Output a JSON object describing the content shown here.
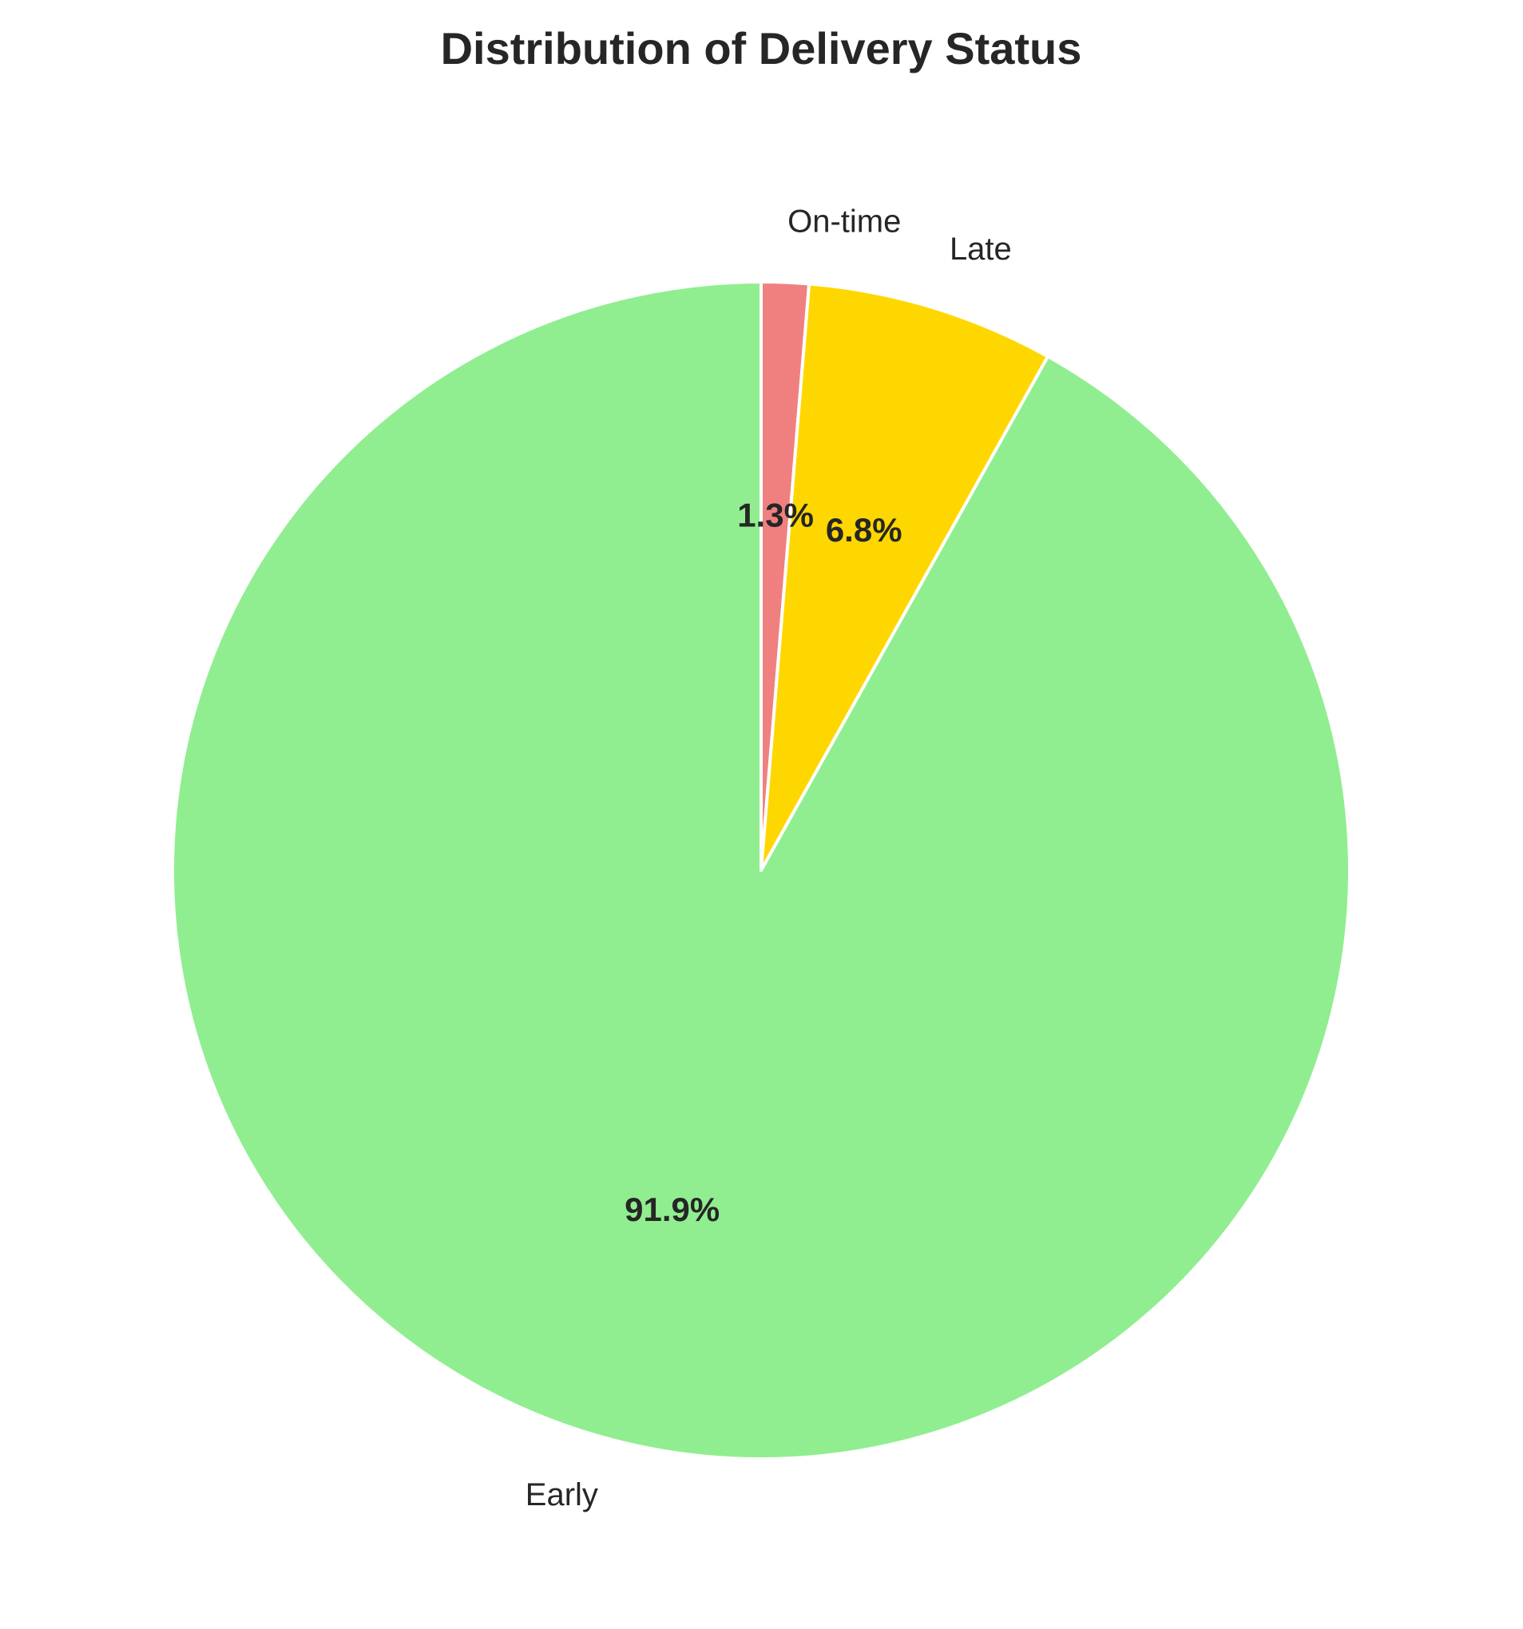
{
  "chart_data": {
    "type": "pie",
    "title": "Distribution of Delivery Status",
    "start_angle_deg": 90,
    "direction": "clockwise",
    "slices": [
      {
        "label": "On-time",
        "value": 1.3,
        "pct_label": "1.3%",
        "color": "#f08080"
      },
      {
        "label": "Late",
        "value": 6.8,
        "pct_label": "6.8%",
        "color": "#ffd700"
      },
      {
        "label": "Early",
        "value": 91.9,
        "pct_label": "91.9%",
        "color": "#90ee90"
      }
    ]
  }
}
